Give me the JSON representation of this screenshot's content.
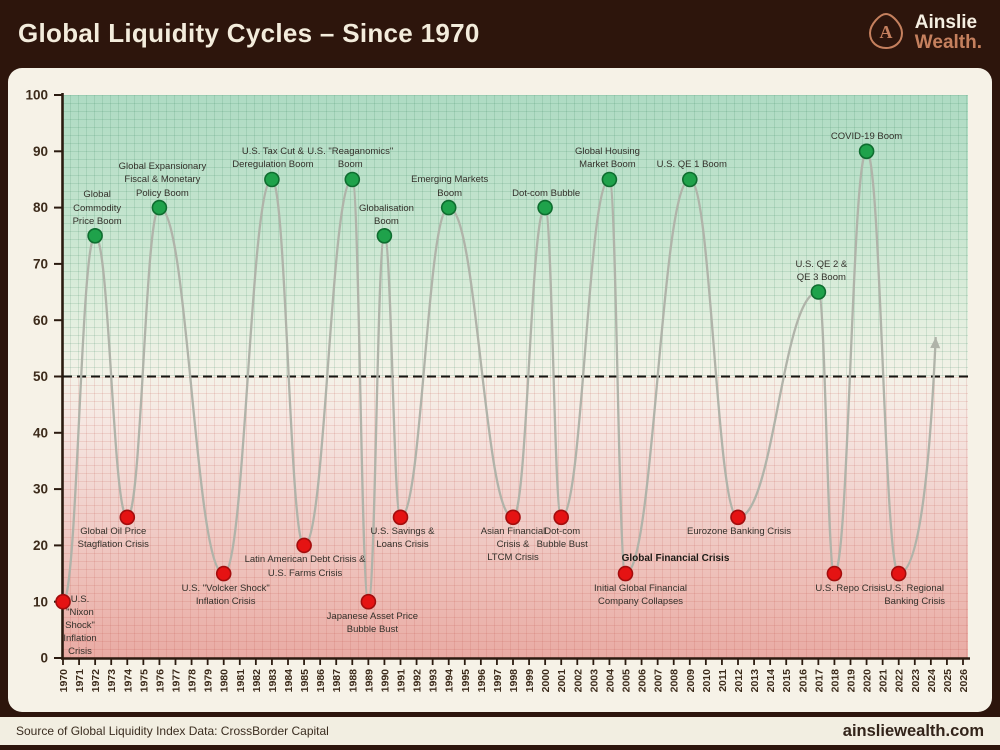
{
  "header": {
    "title": "Global Liquidity Cycles – Since 1970",
    "brand": {
      "line1": "Ainslie",
      "line2": "Wealth."
    }
  },
  "footer": {
    "source": "Source of Global Liquidity Index Data: CrossBorder Capital",
    "website": "ainsliewealth.com"
  },
  "colors": {
    "boom_fill": "#1fa24b",
    "boom_stroke": "#0e6d2f",
    "crisis_fill": "#e51313",
    "crisis_stroke": "#a30d0d",
    "line": "#b0b3a9",
    "midline": "#171512",
    "axis": "#2b1b10",
    "tick_label": "#3c2b1b",
    "copper": "#c5805e"
  },
  "chart_data": {
    "type": "line",
    "title": "Global Liquidity Cycles – Since 1970",
    "xlabel": "",
    "ylabel": "",
    "x_axis": {
      "min": 1970,
      "max": 2026,
      "step": 1
    },
    "y_axis": {
      "min": 0,
      "max": 100,
      "step": 10
    },
    "midline_value": 50,
    "grid": true,
    "legend": "none",
    "projection_arrow": {
      "year": 2024.3,
      "value": 57
    },
    "events": [
      {
        "year": 1970,
        "value": 10,
        "type": "crisis",
        "label": "U.S.\n\"Nixon\nShock\"\nInflation\nCrisis",
        "label_pos": "right",
        "label_dx": 0
      },
      {
        "year": 1972,
        "value": 75,
        "type": "boom",
        "label": "Global\nCommodity\nPrice Boom",
        "label_pos": "above",
        "label_dx": 2
      },
      {
        "year": 1974,
        "value": 25,
        "type": "crisis",
        "label": "Global Oil Price\nStagflation Crisis",
        "label_pos": "below",
        "label_dx": -14
      },
      {
        "year": 1976,
        "value": 80,
        "type": "boom",
        "label": "Global Expansionary\nFiscal & Monetary\nPolicy Boom",
        "label_pos": "above",
        "label_dx": 3
      },
      {
        "year": 1980,
        "value": 15,
        "type": "crisis",
        "label": "U.S. \"Volcker Shock\"\nInflation Crisis",
        "label_pos": "below",
        "label_dx": 2
      },
      {
        "year": 1983,
        "value": 85,
        "type": "boom",
        "label": "U.S. Tax Cut &\nDeregulation Boom",
        "label_pos": "above",
        "label_dx": 1
      },
      {
        "year": 1985,
        "value": 20,
        "type": "crisis",
        "label": "Latin American Debt Crisis &\nU.S. Farms Crisis",
        "label_pos": "below",
        "label_dx": 1
      },
      {
        "year": 1988,
        "value": 85,
        "type": "boom",
        "label": "U.S. \"Reaganomics\"\nBoom",
        "label_pos": "above",
        "label_dx": -2
      },
      {
        "year": 1989,
        "value": 10,
        "type": "crisis",
        "label": "Japanese Asset Price\nBubble Bust",
        "label_pos": "below",
        "label_dx": 4
      },
      {
        "year": 1990,
        "value": 75,
        "type": "boom",
        "label": "Globalisation\nBoom",
        "label_pos": "above",
        "label_dx": 2
      },
      {
        "year": 1991,
        "value": 25,
        "type": "crisis",
        "label": "U.S. Savings &\nLoans Crisis",
        "label_pos": "below",
        "label_dx": 2
      },
      {
        "year": 1994,
        "value": 80,
        "type": "boom",
        "label": "Emerging Markets\nBoom",
        "label_pos": "above",
        "label_dx": 1
      },
      {
        "year": 1998,
        "value": 25,
        "type": "crisis",
        "label": "Asian Financial\nCrisis &\nLTCM Crisis",
        "label_pos": "below",
        "label_dx": 0
      },
      {
        "year": 2000,
        "value": 80,
        "type": "boom",
        "label": "Dot-com Bubble",
        "label_pos": "above",
        "label_dx": 1
      },
      {
        "year": 2001,
        "value": 25,
        "type": "crisis",
        "label": "Dot-com\nBubble Bust",
        "label_pos": "below",
        "label_dx": 1
      },
      {
        "year": 2004,
        "value": 85,
        "type": "boom",
        "label": "Global Housing\nMarket Boom",
        "label_pos": "above",
        "label_dx": -2
      },
      {
        "year": 2005,
        "value": 15,
        "type": "crisis",
        "label": "Initial Global Financial\nCompany Collapses",
        "label_pos": "below",
        "label_dx": 15,
        "label2": "Global Financial Crisis",
        "label2_dx": 50,
        "label2_dy": -22
      },
      {
        "year": 2009,
        "value": 85,
        "type": "boom",
        "label": "U.S. QE 1 Boom",
        "label_pos": "above",
        "label_dx": 2
      },
      {
        "year": 2012,
        "value": 25,
        "type": "crisis",
        "label": "Eurozone Banking Crisis",
        "label_pos": "below",
        "label_dx": 1
      },
      {
        "year": 2017,
        "value": 65,
        "type": "boom",
        "label": "U.S. QE 2 &\nQE 3 Boom",
        "label_pos": "above",
        "label_dx": 3
      },
      {
        "year": 2018,
        "value": 15,
        "type": "crisis",
        "label": "U.S. Repo Crisis",
        "label_pos": "below",
        "label_dx": 16
      },
      {
        "year": 2020,
        "value": 90,
        "type": "boom",
        "label": "COVID-19 Boom",
        "label_pos": "above",
        "label_dx": 0
      },
      {
        "year": 2022,
        "value": 15,
        "type": "crisis",
        "label": "U.S. Regional\nBanking Crisis",
        "label_pos": "below",
        "label_dx": 16
      }
    ]
  }
}
